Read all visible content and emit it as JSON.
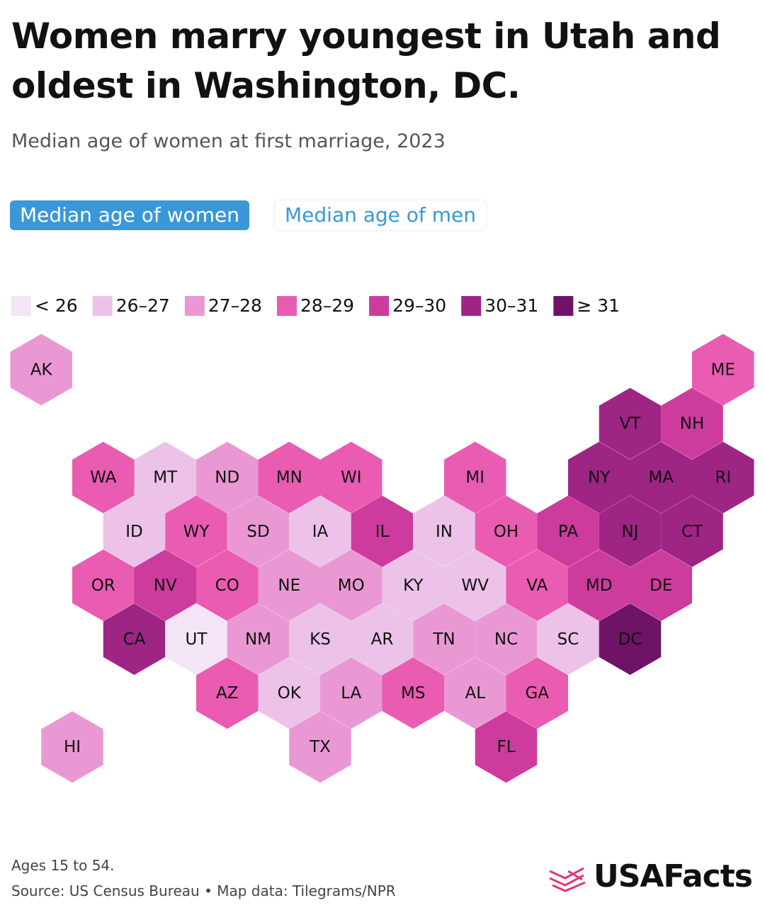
{
  "header": {
    "title": "Women marry youngest in Utah and oldest in Washington, DC.",
    "subtitle": "Median age of women at first marriage, 2023"
  },
  "tabs": [
    "Median age of women",
    "Median age of men"
  ],
  "legend": [
    {
      "label": "< 26",
      "color": "#f3e5f6"
    },
    {
      "label": "26–27",
      "color": "#ecc2e8"
    },
    {
      "label": "27–28",
      "color": "#ea98d3"
    },
    {
      "label": "28–29",
      "color": "#e95cb1"
    },
    {
      "label": "29–30",
      "color": "#cd3b9d"
    },
    {
      "label": "30–31",
      "color": "#9e2584"
    },
    {
      "label": "≥ 31",
      "color": "#6f1366"
    }
  ],
  "tiles": [
    {
      "label": "AK",
      "color": "#ea98d3"
    },
    {
      "label": "ME",
      "color": "#e95cb1"
    },
    {
      "label": "VT",
      "color": "#9e2584"
    },
    {
      "label": "NH",
      "color": "#cd3b9d"
    },
    {
      "label": "WA",
      "color": "#e95cb1"
    },
    {
      "label": "MT",
      "color": "#ecc2e8"
    },
    {
      "label": "ND",
      "color": "#ea98d3"
    },
    {
      "label": "MN",
      "color": "#e95cb1"
    },
    {
      "label": "WI",
      "color": "#e95cb1"
    },
    {
      "label": "MI",
      "color": "#e95cb1"
    },
    {
      "label": "NY",
      "color": "#9e2584"
    },
    {
      "label": "MA",
      "color": "#9e2584"
    },
    {
      "label": "RI",
      "color": "#9e2584"
    },
    {
      "label": "ID",
      "color": "#ecc2e8"
    },
    {
      "label": "WY",
      "color": "#e95cb1"
    },
    {
      "label": "SD",
      "color": "#ea98d3"
    },
    {
      "label": "IA",
      "color": "#ecc2e8"
    },
    {
      "label": "IL",
      "color": "#cd3b9d"
    },
    {
      "label": "IN",
      "color": "#ecc2e8"
    },
    {
      "label": "OH",
      "color": "#e95cb1"
    },
    {
      "label": "PA",
      "color": "#cd3b9d"
    },
    {
      "label": "NJ",
      "color": "#9e2584"
    },
    {
      "label": "CT",
      "color": "#9e2584"
    },
    {
      "label": "OR",
      "color": "#e95cb1"
    },
    {
      "label": "NV",
      "color": "#cd3b9d"
    },
    {
      "label": "CO",
      "color": "#e95cb1"
    },
    {
      "label": "NE",
      "color": "#ea98d3"
    },
    {
      "label": "MO",
      "color": "#ea98d3"
    },
    {
      "label": "KY",
      "color": "#ecc2e8"
    },
    {
      "label": "WV",
      "color": "#ecc2e8"
    },
    {
      "label": "VA",
      "color": "#e95cb1"
    },
    {
      "label": "MD",
      "color": "#cd3b9d"
    },
    {
      "label": "DE",
      "color": "#cd3b9d"
    },
    {
      "label": "CA",
      "color": "#9e2584"
    },
    {
      "label": "UT",
      "color": "#f3e5f6"
    },
    {
      "label": "NM",
      "color": "#ea98d3"
    },
    {
      "label": "KS",
      "color": "#ecc2e8"
    },
    {
      "label": "AR",
      "color": "#ecc2e8"
    },
    {
      "label": "TN",
      "color": "#ea98d3"
    },
    {
      "label": "NC",
      "color": "#ea98d3"
    },
    {
      "label": "SC",
      "color": "#ecc2e8"
    },
    {
      "label": "DC",
      "color": "#6f1366"
    },
    {
      "label": "AZ",
      "color": "#e95cb1"
    },
    {
      "label": "OK",
      "color": "#ecc2e8"
    },
    {
      "label": "LA",
      "color": "#ea98d3"
    },
    {
      "label": "MS",
      "color": "#e95cb1"
    },
    {
      "label": "AL",
      "color": "#ea98d3"
    },
    {
      "label": "GA",
      "color": "#e95cb1"
    },
    {
      "label": "HI",
      "color": "#ea98d3"
    },
    {
      "label": "TX",
      "color": "#ea98d3"
    },
    {
      "label": "FL",
      "color": "#cd3b9d"
    }
  ],
  "footer": {
    "note": "Ages 15 to 54.",
    "source": "Source: US Census Bureau • Map data: Tilegrams/NPR",
    "logo": "USAFacts"
  }
}
